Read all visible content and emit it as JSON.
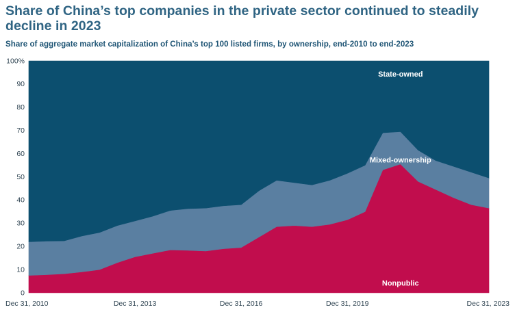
{
  "header": {
    "title": "Share of China’s top companies in the private sector continued to steadily decline in 2023",
    "subtitle": "Share of aggregate market capitalization of China’s top 100 listed firms, by ownership, end-2010 to end-2023"
  },
  "chart_data": {
    "type": "area",
    "stacked": true,
    "title": "Share of China’s top companies in the private sector continued to steadily decline in 2023",
    "subtitle": "Share of aggregate market capitalization of China’s top 100 listed firms, by ownership, end-2010 to end-2023",
    "xlabel": "",
    "ylabel": "",
    "x": [
      "2010-12-31",
      "2011-06-30",
      "2011-12-31",
      "2012-06-30",
      "2012-12-31",
      "2013-06-30",
      "2013-12-31",
      "2014-06-30",
      "2014-12-31",
      "2015-06-30",
      "2015-12-31",
      "2016-06-30",
      "2016-12-31",
      "2017-06-30",
      "2017-12-31",
      "2018-06-30",
      "2018-12-31",
      "2019-06-30",
      "2019-12-31",
      "2020-06-30",
      "2020-12-31",
      "2021-06-30",
      "2021-12-31",
      "2022-06-30",
      "2022-12-31",
      "2023-06-30",
      "2023-12-31"
    ],
    "series": [
      {
        "name": "Nonpublic",
        "color": "#c10d4d",
        "values": [
          7.5,
          7.8,
          8.2,
          9.0,
          10.0,
          13.0,
          15.5,
          17.0,
          18.5,
          18.3,
          18.0,
          19.0,
          19.5,
          24.0,
          28.5,
          29.0,
          28.5,
          29.5,
          31.5,
          35.0,
          53.0,
          55.5,
          48.0,
          44.5,
          41.0,
          38.0,
          36.5
        ]
      },
      {
        "name": "Mixed-ownership",
        "color": "#5a7fa1",
        "values": [
          14.5,
          14.5,
          14.2,
          15.5,
          16.0,
          16.0,
          15.5,
          16.0,
          17.0,
          18.0,
          18.5,
          18.5,
          18.5,
          20.0,
          20.0,
          18.5,
          18.0,
          19.0,
          20.0,
          20.0,
          16.0,
          14.0,
          13.5,
          12.5,
          13.5,
          14.0,
          13.0
        ]
      },
      {
        "name": "State-owned",
        "color": "#0c4f6f",
        "values": [
          78.0,
          77.7,
          77.6,
          75.5,
          74.0,
          71.0,
          69.0,
          67.0,
          64.5,
          63.7,
          63.5,
          62.5,
          62.0,
          56.0,
          51.5,
          52.5,
          53.5,
          51.5,
          48.5,
          45.0,
          31.0,
          30.5,
          38.5,
          43.0,
          45.5,
          48.0,
          50.5
        ]
      }
    ],
    "ylim": [
      0,
      100
    ],
    "yticks": [
      {
        "value": 100,
        "label": "100%"
      },
      {
        "value": 90,
        "label": "90"
      },
      {
        "value": 80,
        "label": "80"
      },
      {
        "value": 70,
        "label": "70"
      },
      {
        "value": 60,
        "label": "60"
      },
      {
        "value": 50,
        "label": "50"
      },
      {
        "value": 40,
        "label": "40"
      },
      {
        "value": 30,
        "label": "30"
      },
      {
        "value": 20,
        "label": "20"
      },
      {
        "value": 10,
        "label": "10"
      },
      {
        "value": 0,
        "label": "0"
      }
    ],
    "xticks": [
      {
        "index": 0,
        "label": "Dec 31, 2010",
        "anchor": "start"
      },
      {
        "index": 6,
        "label": "Dec 31, 2013",
        "anchor": "middle"
      },
      {
        "index": 12,
        "label": "Dec 31, 2016",
        "anchor": "middle"
      },
      {
        "index": 18,
        "label": "Dec 31, 2019",
        "anchor": "middle"
      },
      {
        "index": 26,
        "label": "Dec 31, 2023",
        "anchor": "end"
      }
    ],
    "annotations": [
      {
        "series": "State-owned",
        "text": "State-owned",
        "x_index": 21,
        "y_value": 94
      },
      {
        "series": "Mixed-ownership",
        "text": "Mixed-ownership",
        "x_index": 21,
        "y_value": 57
      },
      {
        "series": "Nonpublic",
        "text": "Nonpublic",
        "x_index": 21,
        "y_value": 4
      }
    ],
    "grid": false,
    "legend": "inline labels"
  }
}
